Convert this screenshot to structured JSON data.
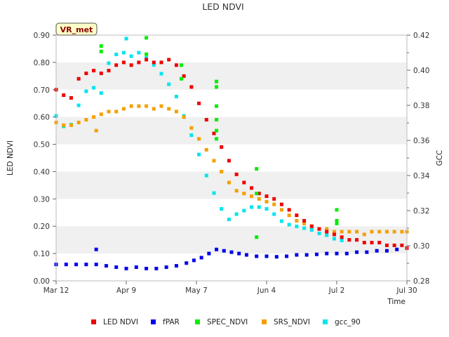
{
  "chart_data": {
    "type": "scatter",
    "title": "LED NDVI",
    "xlabel": "Time",
    "ylabel": "LED NDVI",
    "y2label": "GCC",
    "badge": "VR_met",
    "xlim": [
      0,
      140
    ],
    "ylim": [
      0.0,
      0.9
    ],
    "y2lim": [
      0.28,
      0.42
    ],
    "x_ticks": [
      {
        "day": 0,
        "label": "Mar 12"
      },
      {
        "day": 28,
        "label": "Apr 9"
      },
      {
        "day": 56,
        "label": "May 7"
      },
      {
        "day": 84,
        "label": "Jun 4"
      },
      {
        "day": 112,
        "label": "Jul 2"
      },
      {
        "day": 140,
        "label": "Jul 30"
      }
    ],
    "y_ticks": [
      "0.00",
      "0.10",
      "0.20",
      "0.30",
      "0.40",
      "0.50",
      "0.60",
      "0.70",
      "0.80",
      "0.90"
    ],
    "y2_ticks": [
      "0.28",
      "0.30",
      "0.32",
      "0.34",
      "0.36",
      "0.38",
      "0.40",
      "0.42"
    ],
    "series": [
      {
        "name": "LED NDVI",
        "axis": "left",
        "color": "#ee0000",
        "points": [
          [
            0,
            0.7
          ],
          [
            3,
            0.68
          ],
          [
            6,
            0.67
          ],
          [
            9,
            0.74
          ],
          [
            12,
            0.76
          ],
          [
            15,
            0.77
          ],
          [
            18,
            0.76
          ],
          [
            21,
            0.77
          ],
          [
            24,
            0.79
          ],
          [
            27,
            0.8
          ],
          [
            30,
            0.79
          ],
          [
            33,
            0.8
          ],
          [
            36,
            0.81
          ],
          [
            39,
            0.8
          ],
          [
            42,
            0.8
          ],
          [
            45,
            0.81
          ],
          [
            48,
            0.79
          ],
          [
            51,
            0.75
          ],
          [
            54,
            0.71
          ],
          [
            57,
            0.65
          ],
          [
            60,
            0.59
          ],
          [
            63,
            0.54
          ],
          [
            66,
            0.49
          ],
          [
            69,
            0.44
          ],
          [
            72,
            0.39
          ],
          [
            75,
            0.36
          ],
          [
            78,
            0.34
          ],
          [
            81,
            0.32
          ],
          [
            84,
            0.31
          ],
          [
            87,
            0.3
          ],
          [
            90,
            0.28
          ],
          [
            93,
            0.26
          ],
          [
            96,
            0.24
          ],
          [
            99,
            0.22
          ],
          [
            102,
            0.2
          ],
          [
            105,
            0.19
          ],
          [
            108,
            0.18
          ],
          [
            111,
            0.17
          ],
          [
            114,
            0.16
          ],
          [
            117,
            0.15
          ],
          [
            120,
            0.15
          ],
          [
            123,
            0.14
          ],
          [
            126,
            0.14
          ],
          [
            129,
            0.14
          ],
          [
            132,
            0.13
          ],
          [
            135,
            0.13
          ],
          [
            138,
            0.13
          ],
          [
            140,
            0.12
          ]
        ]
      },
      {
        "name": "fPAR",
        "axis": "left",
        "color": "#0000ee",
        "points": [
          [
            0,
            0.06
          ],
          [
            4,
            0.06
          ],
          [
            8,
            0.06
          ],
          [
            12,
            0.06
          ],
          [
            16,
            0.06
          ],
          [
            20,
            0.055
          ],
          [
            24,
            0.05
          ],
          [
            28,
            0.045
          ],
          [
            32,
            0.05
          ],
          [
            36,
            0.045
          ],
          [
            40,
            0.045
          ],
          [
            44,
            0.05
          ],
          [
            48,
            0.055
          ],
          [
            52,
            0.065
          ],
          [
            55,
            0.075
          ],
          [
            58,
            0.085
          ],
          [
            61,
            0.1
          ],
          [
            64,
            0.115
          ],
          [
            67,
            0.11
          ],
          [
            70,
            0.105
          ],
          [
            73,
            0.1
          ],
          [
            76,
            0.095
          ],
          [
            80,
            0.09
          ],
          [
            84,
            0.09
          ],
          [
            88,
            0.088
          ],
          [
            92,
            0.09
          ],
          [
            96,
            0.095
          ],
          [
            100,
            0.095
          ],
          [
            104,
            0.097
          ],
          [
            108,
            0.1
          ],
          [
            112,
            0.1
          ],
          [
            116,
            0.1
          ],
          [
            120,
            0.105
          ],
          [
            124,
            0.105
          ],
          [
            128,
            0.11
          ],
          [
            132,
            0.11
          ],
          [
            136,
            0.115
          ],
          [
            140,
            0.12
          ],
          [
            16,
            0.115
          ]
        ]
      },
      {
        "name": "SPEC_NDVI",
        "axis": "left",
        "color": "#00ee00",
        "points": [
          [
            18,
            0.86
          ],
          [
            18,
            0.84
          ],
          [
            36,
            0.89
          ],
          [
            36,
            0.83
          ],
          [
            50,
            0.79
          ],
          [
            50,
            0.74
          ],
          [
            64,
            0.73
          ],
          [
            64,
            0.71
          ],
          [
            64,
            0.64
          ],
          [
            64,
            0.59
          ],
          [
            64,
            0.55
          ],
          [
            64,
            0.52
          ],
          [
            80,
            0.41
          ],
          [
            80,
            0.32
          ],
          [
            80,
            0.16
          ],
          [
            112,
            0.26
          ],
          [
            112,
            0.22
          ],
          [
            112,
            0.21
          ]
        ]
      },
      {
        "name": "SRS_NDVI",
        "axis": "left",
        "color": "#f5a000",
        "points": [
          [
            0,
            0.58
          ],
          [
            3,
            0.57
          ],
          [
            6,
            0.57
          ],
          [
            9,
            0.58
          ],
          [
            12,
            0.59
          ],
          [
            15,
            0.6
          ],
          [
            18,
            0.61
          ],
          [
            21,
            0.62
          ],
          [
            24,
            0.62
          ],
          [
            27,
            0.63
          ],
          [
            30,
            0.64
          ],
          [
            33,
            0.64
          ],
          [
            36,
            0.64
          ],
          [
            39,
            0.63
          ],
          [
            42,
            0.64
          ],
          [
            45,
            0.63
          ],
          [
            48,
            0.62
          ],
          [
            51,
            0.6
          ],
          [
            54,
            0.56
          ],
          [
            57,
            0.52
          ],
          [
            60,
            0.48
          ],
          [
            63,
            0.44
          ],
          [
            66,
            0.4
          ],
          [
            69,
            0.36
          ],
          [
            72,
            0.33
          ],
          [
            75,
            0.32
          ],
          [
            78,
            0.31
          ],
          [
            81,
            0.3
          ],
          [
            84,
            0.29
          ],
          [
            87,
            0.28
          ],
          [
            90,
            0.26
          ],
          [
            93,
            0.24
          ],
          [
            96,
            0.22
          ],
          [
            99,
            0.21
          ],
          [
            102,
            0.2
          ],
          [
            105,
            0.19
          ],
          [
            108,
            0.19
          ],
          [
            111,
            0.18
          ],
          [
            114,
            0.18
          ],
          [
            117,
            0.18
          ],
          [
            120,
            0.18
          ],
          [
            123,
            0.17
          ],
          [
            126,
            0.18
          ],
          [
            129,
            0.18
          ],
          [
            132,
            0.18
          ],
          [
            135,
            0.18
          ],
          [
            138,
            0.18
          ],
          [
            140,
            0.18
          ],
          [
            16,
            0.55
          ]
        ]
      },
      {
        "name": "gcc_90",
        "axis": "right",
        "color": "#00e5ee",
        "points": [
          [
            0,
            0.374
          ],
          [
            3,
            0.368
          ],
          [
            6,
            0.369
          ],
          [
            9,
            0.38
          ],
          [
            12,
            0.388
          ],
          [
            15,
            0.39
          ],
          [
            18,
            0.387
          ],
          [
            21,
            0.404
          ],
          [
            24,
            0.409
          ],
          [
            27,
            0.41
          ],
          [
            30,
            0.408
          ],
          [
            33,
            0.41
          ],
          [
            36,
            0.407
          ],
          [
            39,
            0.403
          ],
          [
            42,
            0.398
          ],
          [
            45,
            0.392
          ],
          [
            48,
            0.385
          ],
          [
            51,
            0.374
          ],
          [
            54,
            0.363
          ],
          [
            57,
            0.352
          ],
          [
            60,
            0.34
          ],
          [
            63,
            0.33
          ],
          [
            66,
            0.321
          ],
          [
            69,
            0.315
          ],
          [
            72,
            0.318
          ],
          [
            75,
            0.32
          ],
          [
            78,
            0.322
          ],
          [
            81,
            0.322
          ],
          [
            84,
            0.321
          ],
          [
            87,
            0.318
          ],
          [
            90,
            0.314
          ],
          [
            93,
            0.312
          ],
          [
            96,
            0.311
          ],
          [
            99,
            0.31
          ],
          [
            102,
            0.309
          ],
          [
            105,
            0.307
          ],
          [
            108,
            0.306
          ],
          [
            111,
            0.304
          ],
          [
            114,
            0.303
          ],
          [
            28,
            0.418
          ]
        ]
      }
    ]
  }
}
